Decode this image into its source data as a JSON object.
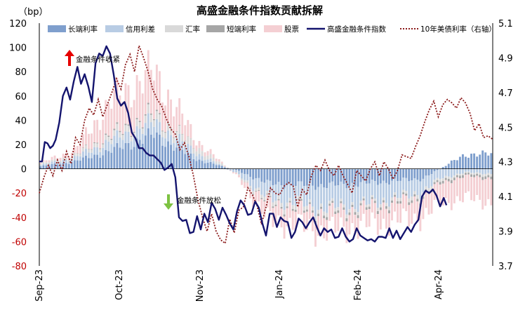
{
  "chart_data": {
    "type": "bar",
    "title": "高盛金融条件指数贡献拆解",
    "ylabel": "（bp）",
    "ylim": [
      -80,
      120
    ],
    "y2lim": [
      3.7,
      5.1
    ],
    "yticks": [
      120,
      100,
      80,
      60,
      40,
      20,
      0,
      -20,
      -40,
      -60,
      -80
    ],
    "y2ticks": [
      "5.1",
      "4.9",
      "4.7",
      "4.5",
      "4.3",
      "4.1",
      "3.9",
      "3.7"
    ],
    "xtick_labels": [
      "Sep-23",
      "Oct-23",
      "Nov-23",
      "Jan-24",
      "Feb-24",
      "Apr-24"
    ],
    "legend": [
      "长端利率",
      "信用利差",
      "汇率",
      "短端利率",
      "股票",
      "高盛金融条件指数",
      "10年美债利率（右轴）"
    ],
    "annotations": {
      "tighten": "金融条件收紧",
      "ease": "金融条件放松"
    },
    "colors": {
      "long_rate": "#7f9fcd",
      "credit_spread": "#b8cce4",
      "fx": "#d9d9d9",
      "short_rate": "#a6a6a6",
      "equity": "#f4cfd3",
      "fci_line": "#14146e",
      "ust_line": "#8b1a1a"
    },
    "series_meta": {
      "n_bars": 160,
      "keys": [
        0,
        12,
        25,
        40,
        55,
        70,
        80,
        100,
        115,
        135,
        150,
        159
      ],
      "long_rate": [
        2,
        6,
        15,
        28,
        8,
        -2,
        -12,
        -14,
        -12,
        -8,
        12,
        12
      ],
      "credit_spread": [
        1,
        3,
        8,
        10,
        5,
        -3,
        -12,
        -18,
        -17,
        -11,
        -3,
        -4
      ],
      "fx": [
        1,
        2,
        4,
        6,
        5,
        -1,
        -3,
        -3,
        -2,
        -3,
        -1,
        -2
      ],
      "short_rate": [
        0,
        0,
        1,
        1,
        0,
        0,
        -1,
        -2,
        -2,
        -2,
        -2,
        -2
      ],
      "equity": [
        1,
        4,
        28,
        35,
        6,
        -2,
        -14,
        -15,
        -14,
        -16,
        -18,
        -20
      ]
    },
    "fci_line_points": [
      [
        0,
        6
      ],
      [
        3,
        6
      ],
      [
        6,
        22
      ],
      [
        9,
        21
      ],
      [
        12,
        17
      ],
      [
        15,
        19
      ],
      [
        18,
        24
      ],
      [
        22,
        38
      ],
      [
        26,
        60
      ],
      [
        30,
        67
      ],
      [
        34,
        57
      ],
      [
        38,
        72
      ],
      [
        42,
        84
      ],
      [
        46,
        70
      ],
      [
        50,
        78
      ],
      [
        54,
        68
      ],
      [
        58,
        55
      ],
      [
        62,
        87
      ],
      [
        66,
        95
      ],
      [
        70,
        93
      ],
      [
        74,
        101
      ],
      [
        78,
        95
      ],
      [
        82,
        78
      ],
      [
        86,
        58
      ],
      [
        90,
        52
      ],
      [
        94,
        55
      ],
      [
        98,
        46
      ],
      [
        102,
        30
      ],
      [
        106,
        25
      ],
      [
        110,
        17
      ],
      [
        114,
        17
      ],
      [
        118,
        13
      ],
      [
        122,
        11
      ],
      [
        126,
        11
      ],
      [
        130,
        8
      ],
      [
        134,
        5
      ],
      [
        138,
        -1
      ],
      [
        142,
        1
      ],
      [
        146,
        4
      ],
      [
        150,
        -7
      ],
      [
        154,
        -40
      ],
      [
        158,
        -43
      ],
      [
        162,
        -42
      ],
      [
        166,
        -53
      ],
      [
        170,
        -52
      ],
      [
        174,
        -39
      ],
      [
        178,
        -50
      ],
      [
        182,
        -37
      ],
      [
        186,
        -44
      ],
      [
        190,
        -28
      ],
      [
        194,
        -33
      ],
      [
        198,
        -42
      ],
      [
        202,
        -32
      ],
      [
        206,
        -38
      ],
      [
        210,
        -45
      ],
      [
        214,
        -50
      ],
      [
        218,
        -35
      ],
      [
        222,
        -26
      ],
      [
        226,
        -30
      ],
      [
        230,
        -38
      ],
      [
        234,
        -37
      ],
      [
        238,
        -27
      ],
      [
        242,
        -32
      ],
      [
        246,
        -45
      ],
      [
        250,
        -55
      ],
      [
        254,
        -37
      ],
      [
        258,
        -37
      ],
      [
        262,
        -48
      ],
      [
        266,
        -40
      ],
      [
        270,
        -43
      ],
      [
        274,
        -44
      ],
      [
        278,
        -57
      ],
      [
        282,
        -52
      ],
      [
        286,
        -41
      ],
      [
        290,
        -44
      ],
      [
        294,
        -49
      ],
      [
        298,
        -44
      ],
      [
        302,
        -40
      ],
      [
        306,
        -48
      ],
      [
        310,
        -55
      ],
      [
        314,
        -49
      ],
      [
        318,
        -52
      ],
      [
        322,
        -50
      ],
      [
        326,
        -57
      ],
      [
        330,
        -56
      ],
      [
        334,
        -49
      ],
      [
        338,
        -56
      ],
      [
        342,
        -60
      ],
      [
        346,
        -58
      ],
      [
        350,
        -49
      ],
      [
        354,
        -55
      ],
      [
        358,
        -57
      ],
      [
        362,
        -59
      ],
      [
        366,
        -58
      ],
      [
        370,
        -60
      ],
      [
        374,
        -56
      ],
      [
        378,
        -56
      ],
      [
        382,
        -57
      ],
      [
        386,
        -49
      ],
      [
        390,
        -57
      ],
      [
        394,
        -51
      ],
      [
        398,
        -58
      ],
      [
        402,
        -53
      ],
      [
        406,
        -48
      ],
      [
        410,
        -52
      ],
      [
        414,
        -46
      ],
      [
        418,
        -42
      ],
      [
        422,
        -23
      ],
      [
        426,
        -18
      ],
      [
        430,
        -20
      ],
      [
        434,
        -17
      ],
      [
        438,
        -22
      ],
      [
        442,
        -31
      ],
      [
        446,
        -24
      ],
      [
        449,
        -30
      ]
    ],
    "ust_line_points": [
      [
        0,
        4.12
      ],
      [
        5,
        4.21
      ],
      [
        10,
        4.28
      ],
      [
        15,
        4.22
      ],
      [
        20,
        4.31
      ],
      [
        25,
        4.25
      ],
      [
        30,
        4.36
      ],
      [
        35,
        4.29
      ],
      [
        40,
        4.44
      ],
      [
        45,
        4.4
      ],
      [
        50,
        4.54
      ],
      [
        55,
        4.61
      ],
      [
        60,
        4.57
      ],
      [
        65,
        4.66
      ],
      [
        70,
        4.56
      ],
      [
        75,
        4.63
      ],
      [
        80,
        4.7
      ],
      [
        85,
        4.78
      ],
      [
        90,
        4.72
      ],
      [
        95,
        4.86
      ],
      [
        100,
        4.92
      ],
      [
        105,
        4.82
      ],
      [
        110,
        4.97
      ],
      [
        115,
        4.9
      ],
      [
        120,
        4.82
      ],
      [
        125,
        4.72
      ],
      [
        130,
        4.66
      ],
      [
        135,
        4.62
      ],
      [
        140,
        4.55
      ],
      [
        145,
        4.49
      ],
      [
        150,
        4.46
      ],
      [
        155,
        4.37
      ],
      [
        160,
        4.41
      ],
      [
        165,
        4.33
      ],
      [
        170,
        4.22
      ],
      [
        175,
        4.08
      ],
      [
        180,
        3.98
      ],
      [
        185,
        3.9
      ],
      [
        190,
        4.0
      ],
      [
        195,
        3.9
      ],
      [
        200,
        3.85
      ],
      [
        205,
        3.83
      ],
      [
        210,
        3.97
      ],
      [
        215,
        3.89
      ],
      [
        220,
        4.02
      ],
      [
        225,
        4.04
      ],
      [
        230,
        4.15
      ],
      [
        235,
        4.11
      ],
      [
        240,
        4.05
      ],
      [
        245,
        3.94
      ],
      [
        250,
        4.04
      ],
      [
        255,
        4.15
      ],
      [
        260,
        4.12
      ],
      [
        265,
        4.11
      ],
      [
        270,
        4.16
      ],
      [
        275,
        4.18
      ],
      [
        280,
        4.16
      ],
      [
        285,
        4.04
      ],
      [
        290,
        4.14
      ],
      [
        295,
        4.11
      ],
      [
        300,
        4.22
      ],
      [
        305,
        4.28
      ],
      [
        310,
        4.25
      ],
      [
        315,
        4.31
      ],
      [
        320,
        4.25
      ],
      [
        325,
        4.22
      ],
      [
        330,
        4.28
      ],
      [
        335,
        4.22
      ],
      [
        340,
        4.17
      ],
      [
        345,
        4.12
      ],
      [
        350,
        4.25
      ],
      [
        355,
        4.22
      ],
      [
        360,
        4.19
      ],
      [
        365,
        4.26
      ],
      [
        370,
        4.3
      ],
      [
        375,
        4.22
      ],
      [
        380,
        4.3
      ],
      [
        385,
        4.26
      ],
      [
        390,
        4.2
      ],
      [
        395,
        4.25
      ],
      [
        400,
        4.34
      ],
      [
        405,
        4.33
      ],
      [
        410,
        4.32
      ],
      [
        415,
        4.39
      ],
      [
        420,
        4.45
      ],
      [
        425,
        4.53
      ],
      [
        430,
        4.6
      ],
      [
        435,
        4.65
      ],
      [
        440,
        4.56
      ],
      [
        445,
        4.63
      ],
      [
        450,
        4.66
      ],
      [
        455,
        4.64
      ],
      [
        460,
        4.61
      ],
      [
        465,
        4.67
      ],
      [
        470,
        4.64
      ],
      [
        475,
        4.58
      ],
      [
        480,
        4.48
      ],
      [
        485,
        4.52
      ],
      [
        490,
        4.44
      ],
      [
        495,
        4.45
      ],
      [
        500,
        4.43
      ]
    ]
  }
}
